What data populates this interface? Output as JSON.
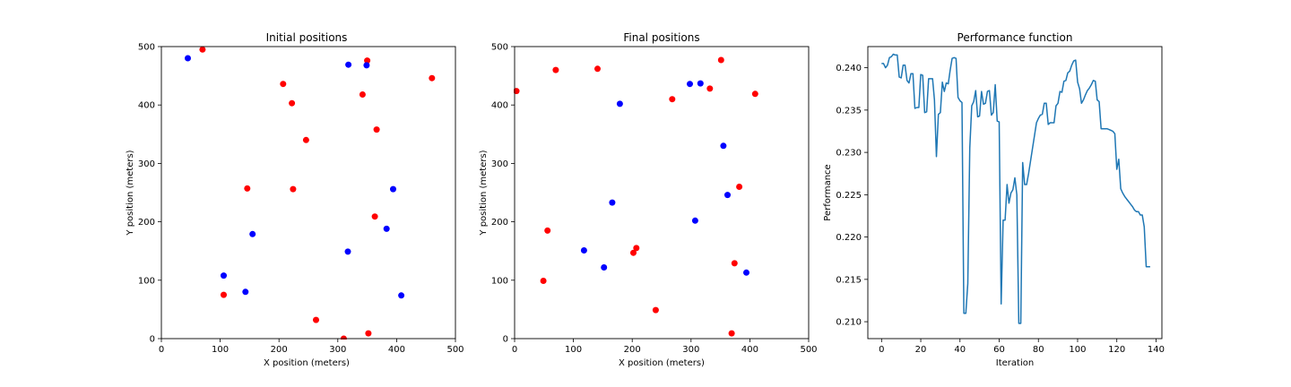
{
  "chart_data": [
    {
      "type": "scatter",
      "title": "Initial positions",
      "xlabel": "X position (meters)",
      "ylabel": "Y position (meters)",
      "xlim": [
        0,
        500
      ],
      "ylim": [
        0,
        500
      ],
      "xticks": [
        0,
        100,
        200,
        300,
        400,
        500
      ],
      "yticks": [
        0,
        100,
        200,
        300,
        400,
        500
      ],
      "grid": false,
      "series": [
        {
          "color": "#ff0000",
          "points": [
            [
              70,
              495
            ],
            [
              350,
              476
            ],
            [
              460,
              446
            ],
            [
              207,
              436
            ],
            [
              222,
              403
            ],
            [
              342,
              418
            ],
            [
              366,
              358
            ],
            [
              246,
              340
            ],
            [
              146,
              257
            ],
            [
              224,
              256
            ],
            [
              363,
              209
            ],
            [
              106,
              75
            ],
            [
              263,
              32
            ],
            [
              352,
              9
            ],
            [
              310,
              0
            ]
          ]
        },
        {
          "color": "#0000ff",
          "points": [
            [
              45,
              480
            ],
            [
              318,
              469
            ],
            [
              349,
              468
            ],
            [
              394,
              256
            ],
            [
              155,
              179
            ],
            [
              383,
              188
            ],
            [
              106,
              108
            ],
            [
              317,
              149
            ],
            [
              143,
              80
            ],
            [
              408,
              74
            ]
          ]
        }
      ]
    },
    {
      "type": "scatter",
      "title": "Final positions",
      "xlabel": "X position (meters)",
      "ylabel": "Y position (meters)",
      "xlim": [
        0,
        500
      ],
      "ylim": [
        0,
        500
      ],
      "xticks": [
        0,
        100,
        200,
        300,
        400,
        500
      ],
      "yticks": [
        0,
        100,
        200,
        300,
        400,
        500
      ],
      "grid": false,
      "series": [
        {
          "color": "#ff0000",
          "points": [
            [
              3,
              424
            ],
            [
              70,
              460
            ],
            [
              141,
              462
            ],
            [
              351,
              477
            ],
            [
              332,
              428
            ],
            [
              409,
              419
            ],
            [
              268,
              410
            ],
            [
              382,
              260
            ],
            [
              56,
              185
            ],
            [
              207,
              155
            ],
            [
              202,
              147
            ],
            [
              49,
              99
            ],
            [
              374,
              129
            ],
            [
              240,
              49
            ],
            [
              369,
              9
            ]
          ]
        },
        {
          "color": "#0000ff",
          "points": [
            [
              298,
              436
            ],
            [
              316,
              437
            ],
            [
              179,
              402
            ],
            [
              355,
              330
            ],
            [
              166,
              233
            ],
            [
              362,
              246
            ],
            [
              307,
              202
            ],
            [
              118,
              151
            ],
            [
              152,
              122
            ],
            [
              394,
              113
            ]
          ]
        }
      ]
    },
    {
      "type": "line",
      "title": "Performance function",
      "xlabel": "Iteration",
      "ylabel": "Performance",
      "xlim": [
        -7,
        143
      ],
      "ylim": [
        0.208,
        0.2425
      ],
      "xticks": [
        0,
        20,
        40,
        60,
        80,
        100,
        120,
        140
      ],
      "yticks": [
        0.21,
        0.215,
        0.22,
        0.225,
        0.23,
        0.235,
        0.24
      ],
      "grid": false,
      "series": [
        {
          "color": "#1f77b4",
          "x": [
            0,
            1,
            2,
            3,
            4,
            5,
            6,
            7,
            8,
            9,
            10,
            11,
            12,
            13,
            14,
            15,
            16,
            17,
            18,
            19,
            20,
            21,
            22,
            23,
            24,
            25,
            26,
            27,
            28,
            29,
            30,
            31,
            32,
            33,
            34,
            35,
            36,
            37,
            38,
            39,
            40,
            41,
            42,
            43,
            44,
            45,
            46,
            47,
            48,
            49,
            50,
            51,
            52,
            53,
            54,
            55,
            56,
            57,
            58,
            59,
            60,
            61,
            62,
            63,
            64,
            65,
            66,
            67,
            68,
            69,
            70,
            71,
            72,
            73,
            74,
            75,
            76,
            77,
            78,
            79,
            80,
            81,
            82,
            83,
            84,
            85,
            86,
            87,
            88,
            89,
            90,
            91,
            92,
            93,
            94,
            95,
            96,
            97,
            98,
            99,
            100,
            101,
            102,
            103,
            104,
            105,
            106,
            107,
            108,
            109,
            110,
            111,
            112,
            113,
            114,
            115,
            116,
            117,
            118,
            119,
            120,
            121,
            122,
            123,
            124,
            125,
            126,
            127,
            128,
            129,
            130,
            131,
            132,
            133,
            134,
            135,
            136,
            137
          ],
          "values": [
            0.2405,
            0.2405,
            0.24,
            0.2403,
            0.2412,
            0.2413,
            0.2416,
            0.2415,
            0.2415,
            0.2389,
            0.2388,
            0.2403,
            0.2403,
            0.2385,
            0.2382,
            0.2393,
            0.2393,
            0.2352,
            0.2353,
            0.2353,
            0.2392,
            0.2391,
            0.2347,
            0.2348,
            0.2387,
            0.2387,
            0.2387,
            0.2362,
            0.2295,
            0.2345,
            0.2347,
            0.2383,
            0.2372,
            0.2382,
            0.2381,
            0.2397,
            0.2411,
            0.2412,
            0.2411,
            0.2365,
            0.2361,
            0.2359,
            0.211,
            0.211,
            0.2145,
            0.2305,
            0.2355,
            0.236,
            0.2373,
            0.2342,
            0.2343,
            0.2372,
            0.2357,
            0.2358,
            0.2372,
            0.2373,
            0.2344,
            0.2347,
            0.238,
            0.2337,
            0.2336,
            0.2121,
            0.222,
            0.222,
            0.2262,
            0.224,
            0.2252,
            0.2256,
            0.227,
            0.225,
            0.2098,
            0.2098,
            0.2288,
            0.2262,
            0.2262,
            0.2275,
            0.229,
            0.2305,
            0.232,
            0.2335,
            0.234,
            0.2344,
            0.2345,
            0.2358,
            0.2358,
            0.2333,
            0.2335,
            0.2335,
            0.2335,
            0.2355,
            0.2358,
            0.2372,
            0.2371,
            0.2384,
            0.2385,
            0.2394,
            0.2396,
            0.2403,
            0.2408,
            0.2409,
            0.2383,
            0.2375,
            0.2358,
            0.2362,
            0.2368,
            0.2373,
            0.2376,
            0.238,
            0.2385,
            0.2384,
            0.2362,
            0.236,
            0.2328,
            0.2328,
            0.2328,
            0.2328,
            0.2327,
            0.2326,
            0.2325,
            0.2322,
            0.228,
            0.2292,
            0.2257,
            0.2252,
            0.2248,
            0.2245,
            0.2242,
            0.2239,
            0.2236,
            0.2232,
            0.223,
            0.223,
            0.2226,
            0.2226,
            0.2212,
            0.2165,
            0.2165,
            0.2165
          ]
        }
      ]
    }
  ]
}
